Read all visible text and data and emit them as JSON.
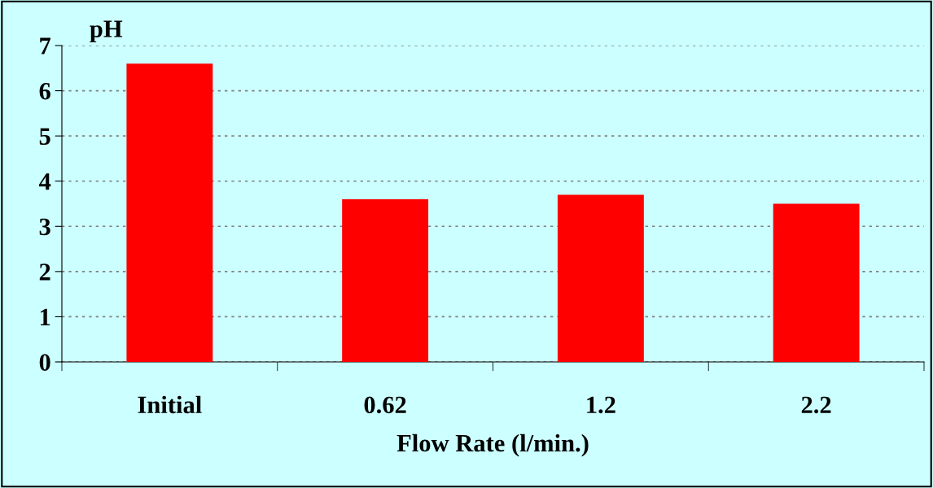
{
  "chart_data": {
    "type": "bar",
    "xlabel": "Flow Rate (l/min.)",
    "ylabel": "pH",
    "categories": [
      "Initial",
      "0.62",
      "1.2",
      "2.2"
    ],
    "values": [
      6.6,
      3.6,
      3.7,
      3.5
    ],
    "color": "#ff0000",
    "ylim": [
      0,
      7
    ],
    "yticks": [
      0,
      1,
      2,
      3,
      4,
      5,
      6,
      7
    ],
    "grid": "y"
  }
}
